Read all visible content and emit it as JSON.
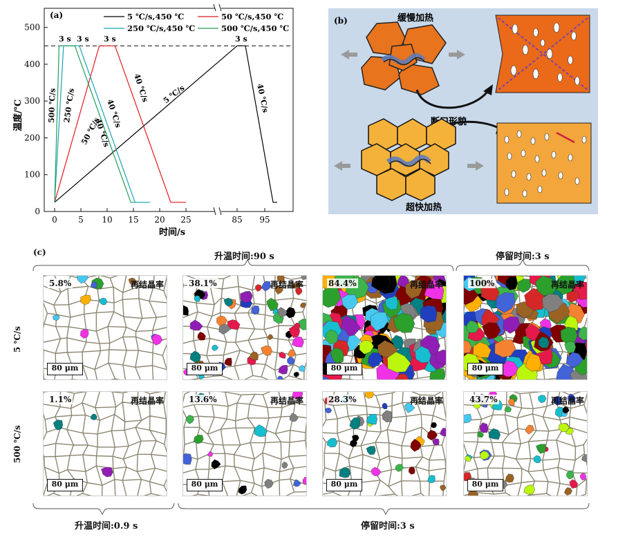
{
  "panel_a": {
    "label": "(a)",
    "ylabel": "温度/℃",
    "xlabel": "时间/s",
    "hold_labels": [
      "3 s",
      "3 s",
      "3 s",
      "3 s"
    ],
    "rate_labels": [
      "500 ℃/s",
      "250 ℃/s",
      "50 ℃/s",
      "40 ℃/s",
      "40 ℃/s",
      "40 ℃/s",
      "5 ℃/s",
      "40 ℃/s"
    ],
    "chart_data": {
      "type": "line",
      "title": "",
      "xlabel": "时间/s",
      "ylabel": "温度/℃",
      "ylim": [
        0,
        550
      ],
      "x_ticks_left": [
        "0",
        "5",
        "10",
        "15",
        "20",
        "25"
      ],
      "x_ticks_right": [
        "85",
        "95"
      ],
      "y_ticks": [
        "0",
        "100",
        "200",
        "300",
        "400",
        "500"
      ],
      "reference_line": {
        "y": 450,
        "style": "dashed"
      },
      "series": [
        {
          "name": "5 ℃/s,450 ℃",
          "color": "#000000",
          "x": [
            0,
            85,
            88,
            98,
            99.5
          ],
          "y": [
            25,
            450,
            450,
            25,
            25
          ]
        },
        {
          "name": "50 ℃/s,450 ℃",
          "color": "#e31a1c",
          "x": [
            0,
            8.5,
            11.5,
            22.1,
            25
          ],
          "y": [
            25,
            450,
            450,
            25,
            25
          ]
        },
        {
          "name": "250 ℃/s,450 ℃",
          "color": "#17a2b8",
          "x": [
            0,
            1.7,
            4.7,
            15.3,
            18.2
          ],
          "y": [
            25,
            450,
            450,
            25,
            25
          ]
        },
        {
          "name": "500 ℃/s,450 ℃",
          "color": "#1f9e5a",
          "x": [
            0,
            0.85,
            3.85,
            14.5,
            15.3
          ],
          "y": [
            25,
            450,
            450,
            25,
            25
          ]
        }
      ]
    }
  },
  "panel_b": {
    "label": "(b)",
    "slow_label": "缓慢加热",
    "fast_label": "超快加热",
    "fracture_label": "断口形貌"
  },
  "panel_c": {
    "label": "(c)",
    "heat_time_90": "升温时间:90 s",
    "hold_time_top": "停留时间:3 s",
    "heat_time_09": "升温时间:0.9 s",
    "hold_time_bottom": "停留时间:3 s",
    "row_labels": [
      "5 ℃/s",
      "500 ℃/s"
    ],
    "recryst_label": "再结晶率",
    "scale_bar": "80 μm",
    "rows": [
      [
        "5.8%",
        "38.1%",
        "84.4%",
        "100%"
      ],
      [
        "1.1%",
        "13.6%",
        "28.3%",
        "43.7%"
      ]
    ]
  }
}
